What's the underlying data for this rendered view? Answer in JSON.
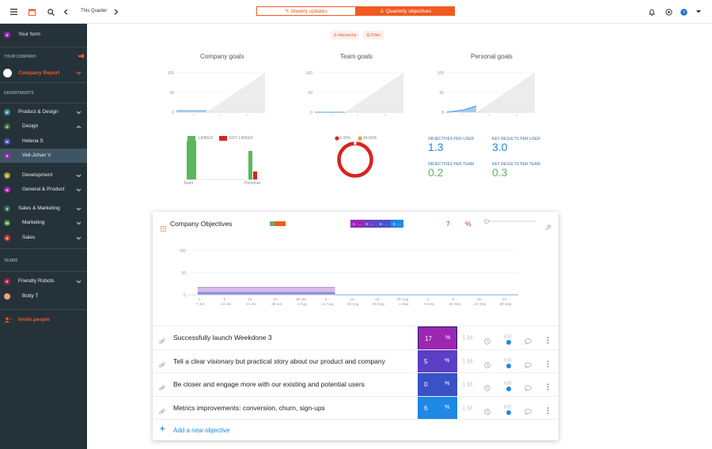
{
  "topbar": {
    "period": "This Quarter",
    "tab_weekly": "Weekly updates",
    "tab_quarterly": "Quarterly objectives"
  },
  "sidebar": {
    "your_form": "Your form",
    "your_company_header": "YOUR COMPANY",
    "company_report": "Company Report",
    "departments_header": "DEPARTMENTS",
    "items": [
      {
        "initial": "P",
        "label": "Product & Design",
        "color": "#3a8f8f"
      },
      {
        "initial": "D",
        "label": "Design",
        "color": "#3a6e3a"
      },
      {
        "initial": "H",
        "label": "Helena S",
        "color": "#4a55b5"
      },
      {
        "initial": "V",
        "label": "Veli-Johan V",
        "color": "#9b27b0"
      },
      {
        "initial": "D",
        "label": "Development",
        "color": "#a59a2a"
      },
      {
        "initial": "G",
        "label": "General & Product",
        "color": "#9b27b0"
      },
      {
        "initial": "S",
        "label": "Sales & Marketing",
        "color": "#2f6e4e"
      },
      {
        "initial": "M",
        "label": "Marketing",
        "color": "#3a8f3a"
      },
      {
        "initial": "S",
        "label": "Sales",
        "color": "#c0392b"
      }
    ],
    "teams_header": "TEAMS",
    "team_items": [
      {
        "initial": "F",
        "label": "Friendly Robots",
        "color": "#b0204a"
      },
      {
        "initial": "",
        "label": "Botty T",
        "color": "#f0a080"
      }
    ],
    "invite": "Invite people"
  },
  "filters": {
    "hierarchy": "Hierarchy",
    "filter": "Filter"
  },
  "goals": {
    "company": "Company goals",
    "team": "Team goals",
    "personal": "Personal goals",
    "ticks": [
      "100",
      "50",
      "0"
    ],
    "months": [
      "Jul",
      "Aug",
      "Sep"
    ]
  },
  "linked": {
    "linked_label": "LINKED",
    "not_linked_label": "NOT LINKED",
    "categories": [
      "Team",
      "Personal"
    ]
  },
  "donut": {
    "legend1": "0-33%",
    "legend2": "34-66%"
  },
  "stats": {
    "obj_per_user_label": "OBJECTIVES PER USER",
    "obj_per_user": "1.3",
    "kr_per_user_label": "KEY RESULTS PER USER",
    "kr_per_user": "3.0",
    "obj_per_team_label": "OBJECTIVES PER TEAM",
    "obj_per_team": "0.2",
    "kr_per_team_label": "KEY RESULTS PER TEAM",
    "kr_per_team": "0.3"
  },
  "card": {
    "title": "Company Objectives",
    "pills": [
      "3 - ...",
      "9 - ...",
      "6 - ...",
      "8 - ..."
    ],
    "progress": "7",
    "percent": "%",
    "add_label": "Add a new objective"
  },
  "chart_data": {
    "type": "area",
    "ylim": [
      0,
      100
    ],
    "yticks": [
      "100",
      "50",
      "0"
    ],
    "x": [
      "1 - 7 Jul",
      "8 - 14 Jul",
      "15 - 21 Jul",
      "22 - 28 Jul",
      "29 Jul - 4 Aug",
      "5 - 11 Aug",
      "12 - 18 Aug",
      "19 - 25 Aug",
      "26 Aug - 1 Sep",
      "2 - 8 Sep",
      "9 - 15 Sep",
      "16 - 22 Sep",
      "23 - 29 Sep"
    ],
    "series": [
      {
        "values": [
          17,
          17,
          17,
          17,
          17,
          17,
          null,
          null,
          null,
          null,
          null,
          null,
          null
        ],
        "color": "#d8b8e6"
      },
      {
        "values": [
          5,
          5,
          5,
          5,
          5,
          5,
          null,
          null,
          null,
          null,
          null,
          null,
          null
        ],
        "color": "#9aa2e8"
      }
    ]
  },
  "objectives": [
    {
      "title": "Successfully launch Weekdone 3",
      "progress": "17",
      "color": "#9b27b0"
    },
    {
      "title": "Tell a clear visionary but practical story about our product and company",
      "progress": "5",
      "color": "#5b3fc4"
    },
    {
      "title": "Be closer and engage more with our existing and potential users",
      "progress": "0",
      "color": "#3a52c6"
    },
    {
      "title": "Metrics improvements: conversion, churn, sign-ups",
      "progress": "6",
      "color": "#1e88e5"
    }
  ],
  "row_meta": {
    "period": "1 M",
    "kr": "KR",
    "pct": "%"
  }
}
